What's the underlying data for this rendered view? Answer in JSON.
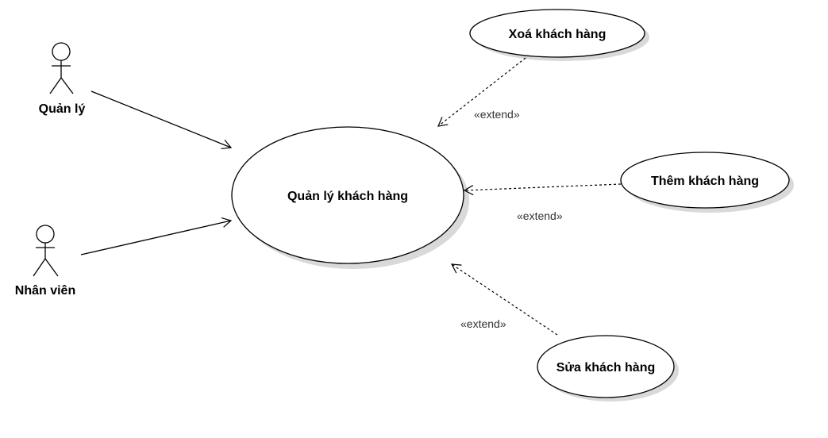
{
  "actors": {
    "manager": {
      "label": "Quản lý"
    },
    "staff": {
      "label": "Nhân viên"
    }
  },
  "use_cases": {
    "manage_customers": {
      "label": "Quản lý khách hàng"
    },
    "delete_customer": {
      "label": "Xoá khách hàng"
    },
    "add_customer": {
      "label": "Thêm khách hàng"
    },
    "edit_customer": {
      "label": "Sửa khách hàng"
    }
  },
  "relations": {
    "delete_extend": {
      "label": "«extend»"
    },
    "add_extend": {
      "label": "«extend»"
    },
    "edit_extend": {
      "label": "«extend»"
    }
  },
  "colors": {
    "stroke": "#000000",
    "shadow": "#d9d9d9",
    "fill": "#ffffff"
  }
}
